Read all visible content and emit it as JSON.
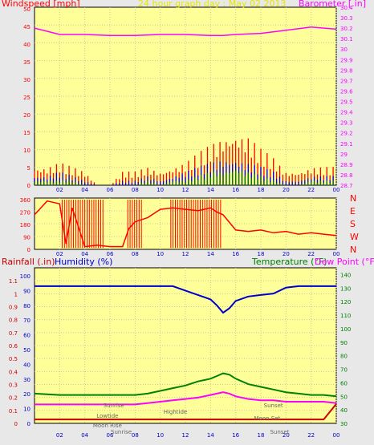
{
  "header": {
    "windspeed_label": "Windspeed [mph]",
    "title": "24 hour graph day : May 02 2013",
    "barometer_label": "Barometer [.in]"
  },
  "lower_header": {
    "rainfall_label": "Rainfall (.in)",
    "humidity_label": "Humidity (%)",
    "temperature_label": "Temperature (°F)",
    "dewpoint_label": "Dew Point (°F)"
  },
  "colors": {
    "background": "#e8e8e8",
    "plot_bg": "#ffff99",
    "wind_gust": "#ff0000",
    "wind_avg": "#0000ff",
    "wind_green": "#008000",
    "barometer": "#ff00ff",
    "direction": "#ff0000",
    "humidity": "#0000cc",
    "temperature": "#008000",
    "dewpoint": "#ff00ff",
    "rainfall": "#cc0000",
    "title": "#e6e600"
  },
  "time_ticks": [
    "02",
    "04",
    "06",
    "08",
    "10",
    "12",
    "14",
    "16",
    "18",
    "20",
    "22",
    "00"
  ],
  "chart_data": [
    {
      "type": "line",
      "name": "wind_barometer",
      "title": "24 hour graph day : May 02 2013",
      "ylabel": "Windspeed [mph]",
      "y2label": "Barometer [.in]",
      "ylim": [
        0,
        50
      ],
      "y2lim": [
        28.7,
        30.4
      ],
      "x_hours": [
        0,
        1,
        2,
        3,
        4,
        5,
        6,
        7,
        8,
        9,
        10,
        11,
        12,
        13,
        14,
        15,
        16,
        17,
        18,
        19,
        20,
        21,
        22,
        23,
        24
      ],
      "gust": [
        4,
        4,
        5,
        4,
        3,
        0,
        0,
        3,
        3,
        4,
        3,
        4,
        5,
        7,
        9,
        11,
        12,
        11,
        8,
        6,
        3,
        3,
        4,
        4,
        4
      ],
      "avg": [
        2,
        2,
        3,
        2,
        1,
        0,
        0,
        1,
        1,
        2,
        1,
        2,
        3,
        4,
        5,
        6,
        6,
        5,
        4,
        3,
        1,
        1,
        2,
        2,
        2
      ],
      "low": [
        1,
        1,
        1,
        1,
        0,
        0,
        0,
        0,
        0,
        1,
        0,
        1,
        1,
        2,
        3,
        3,
        4,
        3,
        2,
        1,
        0,
        0,
        1,
        1,
        1
      ],
      "barometer_x": [
        0,
        1,
        2,
        4,
        6,
        8,
        10,
        12,
        14,
        15,
        16,
        18,
        20,
        22,
        24
      ],
      "barometer": [
        30.2,
        30.17,
        30.14,
        30.14,
        30.13,
        30.13,
        30.14,
        30.14,
        30.13,
        30.13,
        30.14,
        30.15,
        30.18,
        30.21,
        30.19
      ],
      "left_ticks": [
        "0",
        "5",
        "10",
        "15",
        "20",
        "25",
        "30",
        "35",
        "40",
        "45",
        "50"
      ],
      "right_ticks": [
        "28.7",
        "28.8",
        "28.9",
        "29",
        "29.1",
        "29.2",
        "29.3",
        "29.4",
        "29.5",
        "29.6",
        "29.7",
        "29.8",
        "29.9",
        "30",
        "30.1",
        "30.2",
        "30.3",
        "30.4"
      ]
    },
    {
      "type": "line",
      "name": "wind_direction",
      "ylim": [
        0,
        360
      ],
      "left_ticks": [
        "0",
        "90",
        "180",
        "270",
        "360"
      ],
      "compass": [
        "N",
        "W",
        "S",
        "E",
        "N"
      ],
      "x_hours": [
        0,
        1,
        2,
        2.5,
        3,
        4,
        5,
        6,
        7,
        7.5,
        8,
        9,
        10,
        11,
        12,
        13,
        14,
        14.5,
        15,
        16,
        17,
        18,
        19,
        20,
        21,
        22,
        23,
        24
      ],
      "direction": [
        250,
        350,
        330,
        40,
        300,
        20,
        30,
        20,
        20,
        150,
        200,
        230,
        290,
        300,
        290,
        280,
        300,
        270,
        250,
        140,
        130,
        140,
        120,
        130,
        110,
        120,
        110,
        100
      ]
    },
    {
      "type": "line",
      "name": "humidity_temperature",
      "ylabel": "Rainfall (.in)",
      "y2label": "Temperature (°F)",
      "y3label": "Dew Point (°F)",
      "ylim": [
        0,
        1.2
      ],
      "y2lim": [
        30,
        145
      ],
      "humidity_ticks": [
        "0",
        "10",
        "20",
        "30",
        "40",
        "50",
        "60",
        "70",
        "80",
        "90",
        "100"
      ],
      "rain_ticks": [
        "0",
        "0.1",
        "0.2",
        "0.3",
        "0.4",
        "0.5",
        "0.6",
        "0.7",
        "0.8",
        "0.9",
        "1",
        "1.1"
      ],
      "temp_ticks": [
        "30",
        "40",
        "50",
        "60",
        "70",
        "80",
        "90",
        "100",
        "110",
        "120",
        "130",
        "140"
      ],
      "x_hours": [
        0,
        2,
        4,
        6,
        8,
        9,
        10,
        11,
        12,
        13,
        14,
        14.5,
        15,
        15.5,
        16,
        17,
        18,
        19,
        20,
        21,
        22,
        23,
        24
      ],
      "humidity": [
        93,
        93,
        93,
        93,
        93,
        93,
        93,
        93,
        90,
        87,
        84,
        80,
        75,
        78,
        83,
        86,
        87,
        88,
        92,
        93,
        93,
        93,
        93
      ],
      "temperature": [
        52,
        51,
        51,
        51,
        51,
        52,
        54,
        56,
        58,
        61,
        63,
        65,
        67,
        66,
        63,
        59,
        57,
        55,
        53,
        52,
        51,
        51,
        50
      ],
      "dewpoint": [
        44,
        44,
        44,
        44,
        44,
        45,
        46,
        47,
        48,
        49,
        51,
        52,
        53,
        52,
        50,
        48,
        47,
        47,
        46,
        46,
        46,
        46,
        45
      ],
      "rainfall": [
        0.03,
        0.03,
        0.03,
        0.03,
        0.03,
        0.03,
        0.03,
        0.03,
        0.03,
        0.03,
        0.03,
        0.03,
        0.03,
        0.03,
        0.03,
        0.03,
        0.03,
        0.03,
        0.03,
        0.03,
        0.03,
        0.03,
        0.15
      ],
      "annotations": [
        "Sunrise",
        "Lowtide",
        "Moon Rise",
        "Hightide",
        "Sunset",
        "Moon Set",
        "Sunrise",
        "Sunset"
      ]
    }
  ]
}
